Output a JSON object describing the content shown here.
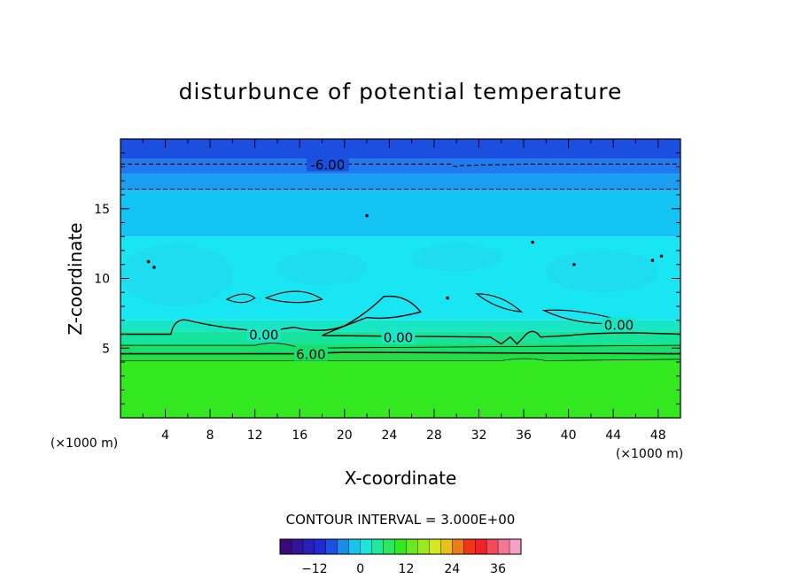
{
  "chart_data": {
    "type": "heatmap",
    "title": "disturbunce of potential temperature",
    "xlabel": "X-coordinate",
    "ylabel": "Z-coordinate",
    "x_unit": "(×1000 m)",
    "y_unit": "(×1000 m)",
    "xlim": [
      0,
      50
    ],
    "ylim": [
      0,
      20
    ],
    "x_ticks": [
      4,
      8,
      12,
      16,
      20,
      24,
      28,
      32,
      36,
      40,
      44,
      48
    ],
    "y_ticks": [
      5,
      10,
      15
    ],
    "contour_interval_text": "CONTOUR INTERVAL = 3.000E+00",
    "contour_labels": [
      {
        "text": "-6.00",
        "x": 18.5,
        "z": 18.2
      },
      {
        "text": "0.00",
        "x": 12.8,
        "z": 6.0
      },
      {
        "text": "0.00",
        "x": 24.8,
        "z": 5.8
      },
      {
        "text": "0.00",
        "x": 44.5,
        "z": 6.7
      },
      {
        "text": "6.00",
        "x": 17.0,
        "z": 4.6
      }
    ],
    "colorbar": {
      "min": -21,
      "max": 42,
      "step": 3,
      "ticks": [
        -12,
        0,
        12,
        24,
        36
      ]
    },
    "field_bands": [
      {
        "z_from": 19.8,
        "z_to": 18.6,
        "value": -12
      },
      {
        "z_from": 18.6,
        "z_to": 17.5,
        "value": -9
      },
      {
        "z_from": 17.5,
        "z_to": 16.3,
        "value": -6
      },
      {
        "z_from": 16.3,
        "z_to": 13.0,
        "value": -3
      },
      {
        "z_from": 13.0,
        "z_to": 7.0,
        "value": 0
      },
      {
        "z_from": 7.0,
        "z_to": 6.2,
        "value": 3
      },
      {
        "z_from": 6.2,
        "z_to": 5.3,
        "value": 6
      },
      {
        "z_from": 5.3,
        "z_to": 4.6,
        "value": 9
      },
      {
        "z_from": 4.6,
        "z_to": 4.1,
        "value": 12
      },
      {
        "z_from": 4.1,
        "z_to": 0.0,
        "value": 15
      }
    ],
    "colors": {
      "-12": "#1a4fe0",
      "-9": "#1f7bef",
      "-6": "#1a9ff2",
      "-3": "#13c4f5",
      "0": "#18e6f2",
      "3": "#18e6c4",
      "6": "#16e39c",
      "9": "#18e06c",
      "12": "#20e044",
      "15": "#33e81f"
    }
  }
}
